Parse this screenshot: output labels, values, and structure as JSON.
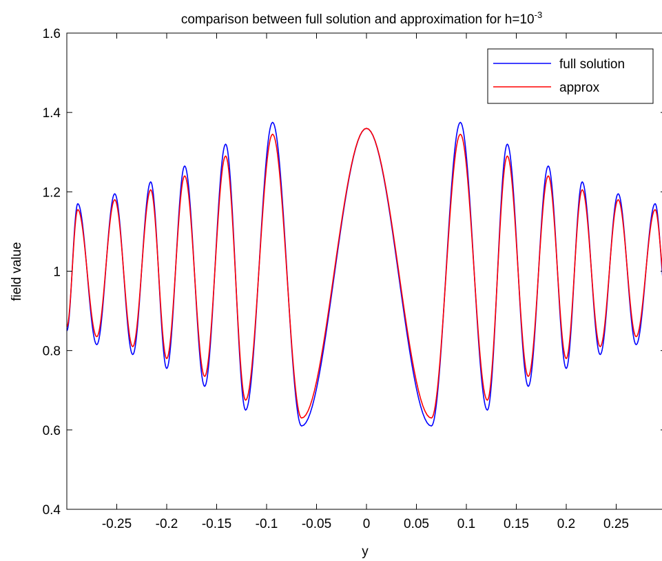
{
  "chart_data": {
    "type": "line",
    "title": "comparison between full solution and approximation for h=10",
    "title_superscript": "-3",
    "xlabel": "y",
    "ylabel": "field value",
    "xlim": [
      -0.3,
      0.3
    ],
    "ylim": [
      0.4,
      1.6
    ],
    "grid": false,
    "legend_position": "top-right",
    "x_ticks": [
      -0.25,
      -0.2,
      -0.15,
      -0.1,
      -0.05,
      0,
      0.05,
      0.1,
      0.15,
      0.2,
      0.25
    ],
    "x_tick_labels": [
      "-0.25",
      "-0.2",
      "-0.15",
      "-0.1",
      "-0.05",
      "0",
      "0.05",
      "0.1",
      "0.15",
      "0.2",
      "0.25"
    ],
    "y_ticks": [
      0.4,
      0.6,
      0.8,
      1.0,
      1.2,
      1.4,
      1.6
    ],
    "y_tick_labels": [
      "0.4",
      "0.6",
      "0.8",
      "1",
      "1.2",
      "1.4",
      "1.6"
    ],
    "series": [
      {
        "name": "full solution",
        "color": "#0000ff",
        "x": [
          -0.3,
          -0.289,
          -0.27,
          -0.252,
          -0.234,
          -0.216,
          -0.2,
          -0.182,
          -0.162,
          -0.141,
          -0.121,
          -0.094,
          -0.065,
          0,
          0.065,
          0.094,
          0.121,
          0.141,
          0.162,
          0.182,
          0.2,
          0.216,
          0.234,
          0.252,
          0.27,
          0.289,
          0.3
        ],
        "y": [
          0.85,
          1.17,
          0.815,
          1.195,
          0.79,
          1.225,
          0.755,
          1.265,
          0.71,
          1.32,
          0.65,
          1.375,
          0.61,
          1.36,
          0.61,
          1.375,
          0.65,
          1.32,
          0.71,
          1.265,
          0.755,
          1.225,
          0.79,
          1.195,
          0.815,
          1.17,
          0.93
        ]
      },
      {
        "name": "approx",
        "color": "#ff0000",
        "x": [
          -0.3,
          -0.289,
          -0.27,
          -0.252,
          -0.234,
          -0.216,
          -0.2,
          -0.182,
          -0.162,
          -0.141,
          -0.121,
          -0.094,
          -0.065,
          0,
          0.065,
          0.094,
          0.121,
          0.141,
          0.162,
          0.182,
          0.2,
          0.216,
          0.234,
          0.252,
          0.27,
          0.289,
          0.3
        ],
        "y": [
          0.86,
          1.155,
          0.835,
          1.18,
          0.81,
          1.205,
          0.78,
          1.24,
          0.735,
          1.29,
          0.675,
          1.345,
          0.63,
          1.36,
          0.63,
          1.345,
          0.675,
          1.29,
          0.735,
          1.24,
          0.78,
          1.205,
          0.81,
          1.18,
          0.835,
          1.155,
          0.95
        ]
      }
    ]
  }
}
